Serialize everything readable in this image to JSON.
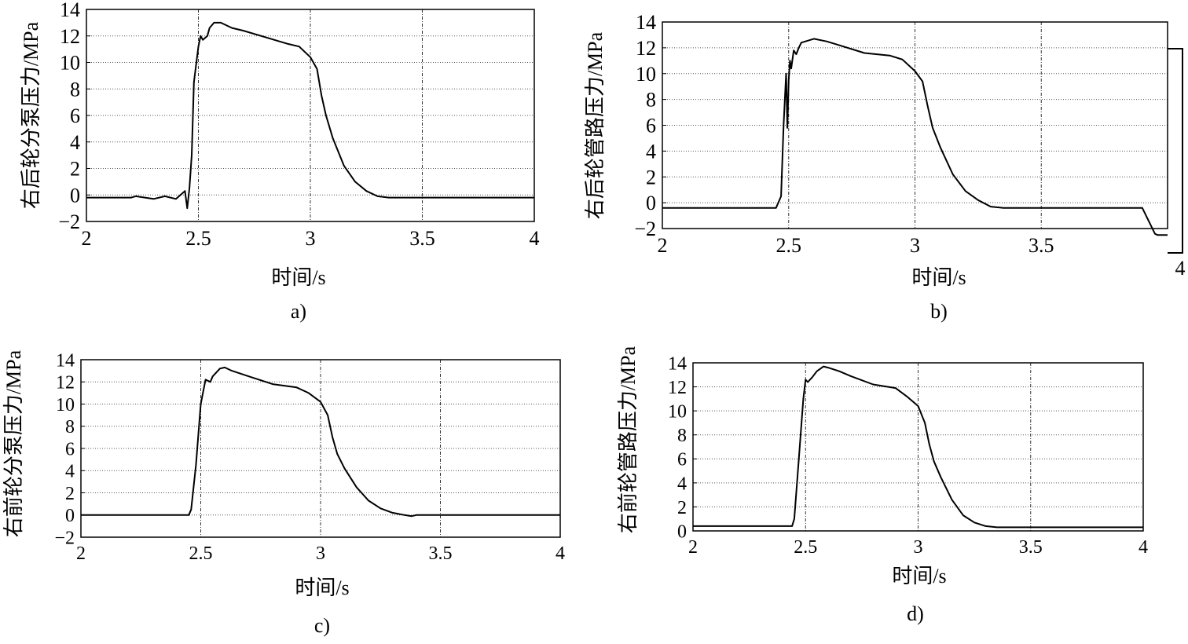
{
  "figure": {
    "panels": [
      {
        "caption": "a)",
        "xlabel": "时间/s",
        "ylabel": "右后轮分泵压力/MPa"
      },
      {
        "caption": "b)",
        "xlabel": "时间/s",
        "ylabel": "右后轮管路压力/MPa"
      },
      {
        "caption": "c)",
        "xlabel": "时间/s",
        "ylabel": "右前轮分泵压力/MPa"
      },
      {
        "caption": "d)",
        "xlabel": "时间/s",
        "ylabel": "右前轮管路压力/MPa"
      }
    ],
    "stray_label": "4"
  },
  "chart_data": [
    {
      "type": "line",
      "caption": "a)",
      "xlabel": "时间/s",
      "ylabel": "右后轮分泵压力/MPa",
      "xlim": [
        2,
        4
      ],
      "ylim": [
        -2,
        14
      ],
      "xticks": [
        "2",
        "2.5",
        "3",
        "3.5",
        "4"
      ],
      "yticks": [
        "-2",
        "0",
        "2",
        "4",
        "6",
        "8",
        "10",
        "12",
        "14"
      ],
      "grid": true,
      "series": [
        {
          "x": [
            2.0,
            2.2,
            2.22,
            2.3,
            2.35,
            2.4,
            2.44,
            2.45,
            2.46,
            2.47,
            2.48,
            2.5,
            2.51,
            2.52,
            2.54,
            2.55,
            2.57,
            2.6,
            2.65,
            2.7,
            2.8,
            2.9,
            2.95,
            3.0,
            3.03,
            3.05,
            3.07,
            3.1,
            3.15,
            3.2,
            3.25,
            3.3,
            3.35,
            3.4,
            3.5,
            4.0
          ],
          "y": [
            -0.2,
            -0.2,
            -0.1,
            -0.3,
            -0.1,
            -0.3,
            0.3,
            -1.0,
            0.5,
            3.0,
            8.5,
            11.2,
            12.0,
            11.7,
            12.0,
            12.6,
            13.0,
            13.0,
            12.6,
            12.4,
            11.9,
            11.4,
            11.2,
            10.4,
            9.5,
            7.5,
            6.0,
            4.3,
            2.2,
            1.0,
            0.3,
            -0.1,
            -0.2,
            -0.2,
            -0.2,
            -0.2
          ]
        }
      ]
    },
    {
      "type": "line",
      "caption": "b)",
      "xlabel": "时间/s",
      "ylabel": "右后轮管路压力/MPa",
      "xlim": [
        2,
        4
      ],
      "ylim": [
        -2,
        14
      ],
      "xticks": [
        "2",
        "2.5",
        "3",
        "3.5"
      ],
      "yticks": [
        "-2",
        "0",
        "2",
        "4",
        "6",
        "8",
        "10",
        "12",
        "14"
      ],
      "grid": true,
      "series": [
        {
          "x": [
            2.0,
            2.45,
            2.47,
            2.48,
            2.49,
            2.495,
            2.5,
            2.505,
            2.51,
            2.52,
            2.53,
            2.54,
            2.55,
            2.6,
            2.65,
            2.7,
            2.8,
            2.9,
            2.95,
            3.0,
            3.03,
            3.05,
            3.07,
            3.1,
            3.15,
            3.2,
            3.25,
            3.3,
            3.35,
            3.4,
            3.5,
            3.9,
            3.95,
            3.96,
            4.0
          ],
          "y": [
            -0.4,
            -0.4,
            0.5,
            6.0,
            10.0,
            5.8,
            9.5,
            11.0,
            10.4,
            11.8,
            11.5,
            12.0,
            12.4,
            12.7,
            12.5,
            12.2,
            11.6,
            11.4,
            11.1,
            10.2,
            9.4,
            7.5,
            5.8,
            4.3,
            2.2,
            0.9,
            0.2,
            -0.3,
            -0.4,
            -0.4,
            -0.4,
            -0.4,
            -2.4,
            -2.5,
            -2.5
          ]
        }
      ]
    },
    {
      "type": "line",
      "caption": "c)",
      "xlabel": "时间/s",
      "ylabel": "右前轮分泵压力/MPa",
      "xlim": [
        2,
        4
      ],
      "ylim": [
        -2,
        14
      ],
      "xticks": [
        "2",
        "2.5",
        "3",
        "3.5",
        "4"
      ],
      "yticks": [
        "-2",
        "0",
        "2",
        "4",
        "6",
        "8",
        "10",
        "12",
        "14"
      ],
      "grid": true,
      "series": [
        {
          "x": [
            2.0,
            2.45,
            2.46,
            2.48,
            2.5,
            2.52,
            2.54,
            2.55,
            2.58,
            2.6,
            2.63,
            2.7,
            2.8,
            2.9,
            2.95,
            3.0,
            3.03,
            3.05,
            3.07,
            3.1,
            3.15,
            3.2,
            3.25,
            3.3,
            3.35,
            3.38,
            3.4,
            4.0
          ],
          "y": [
            0.0,
            0.0,
            0.5,
            4.5,
            10.0,
            12.2,
            12.0,
            12.5,
            13.2,
            13.3,
            13.0,
            12.5,
            11.8,
            11.5,
            11.0,
            10.2,
            9.0,
            7.0,
            5.5,
            4.2,
            2.5,
            1.3,
            0.6,
            0.2,
            0.0,
            -0.1,
            0.0,
            0.0
          ]
        }
      ]
    },
    {
      "type": "line",
      "caption": "d)",
      "xlabel": "时间/s",
      "ylabel": "右前轮管路压力/MPa",
      "xlim": [
        2,
        4
      ],
      "ylim": [
        0,
        14
      ],
      "xticks": [
        "2",
        "2.5",
        "3",
        "3.5",
        "4"
      ],
      "yticks": [
        "0",
        "2",
        "4",
        "6",
        "8",
        "10",
        "12",
        "14"
      ],
      "grid": true,
      "series": [
        {
          "x": [
            2.0,
            2.44,
            2.45,
            2.47,
            2.49,
            2.5,
            2.51,
            2.53,
            2.55,
            2.58,
            2.6,
            2.65,
            2.7,
            2.8,
            2.9,
            2.95,
            3.0,
            3.03,
            3.05,
            3.07,
            3.1,
            3.15,
            3.2,
            3.25,
            3.3,
            3.35,
            3.4,
            4.0
          ],
          "y": [
            0.4,
            0.4,
            1.0,
            6.0,
            11.0,
            12.6,
            12.4,
            12.8,
            13.3,
            13.7,
            13.6,
            13.3,
            12.9,
            12.2,
            11.9,
            11.2,
            10.4,
            9.0,
            7.2,
            5.8,
            4.5,
            2.6,
            1.3,
            0.7,
            0.4,
            0.3,
            0.3,
            0.3
          ]
        }
      ]
    }
  ]
}
